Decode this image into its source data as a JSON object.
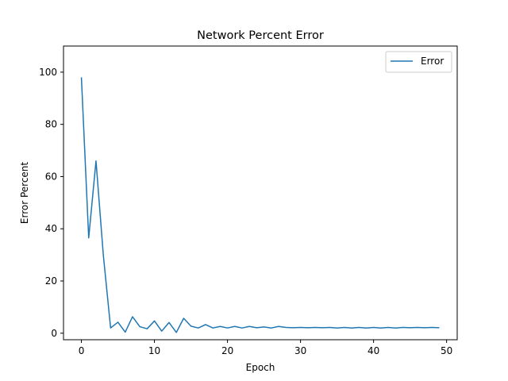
{
  "chart_data": {
    "type": "line",
    "title": "Network Percent Error",
    "xlabel": "Epoch",
    "ylabel": "Error Percent",
    "xlim": [
      -2.45,
      51.45
    ],
    "ylim": [
      -2.5,
      110
    ],
    "xticks": [
      0,
      10,
      20,
      30,
      40,
      50
    ],
    "yticks": [
      0,
      20,
      40,
      60,
      80,
      100
    ],
    "grid": false,
    "legend": "top-right",
    "series": [
      {
        "name": "Error",
        "color": "#1f77b4",
        "x": [
          0,
          1,
          2,
          3,
          4,
          5,
          6,
          7,
          8,
          9,
          10,
          11,
          12,
          13,
          14,
          15,
          16,
          17,
          18,
          19,
          20,
          21,
          22,
          23,
          24,
          25,
          26,
          27,
          28,
          29,
          30,
          31,
          32,
          33,
          34,
          35,
          36,
          37,
          38,
          39,
          40,
          41,
          42,
          43,
          44,
          45,
          46,
          47,
          48,
          49
        ],
        "y": [
          98.0,
          36.5,
          66.0,
          30.0,
          2.0,
          4.2,
          0.4,
          6.3,
          2.5,
          1.7,
          4.7,
          0.8,
          4.1,
          0.3,
          5.7,
          2.7,
          2.0,
          3.3,
          2.0,
          2.6,
          2.0,
          2.6,
          2.0,
          2.6,
          2.1,
          2.4,
          2.0,
          2.6,
          2.2,
          2.1,
          2.2,
          2.1,
          2.2,
          2.1,
          2.2,
          2.0,
          2.2,
          2.0,
          2.2,
          2.0,
          2.2,
          2.0,
          2.2,
          2.0,
          2.2,
          2.1,
          2.2,
          2.1,
          2.2,
          2.1
        ]
      }
    ]
  }
}
